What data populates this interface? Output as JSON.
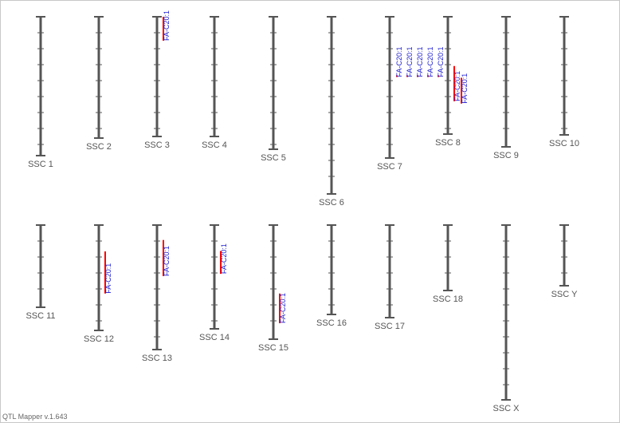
{
  "app": {
    "version_label": "QTL Mapper v.1.643"
  },
  "colors": {
    "chromosome": "#555555",
    "tick": "#555555",
    "qtl_bar": "#ff0000",
    "qtl_text": "#1a1ad0",
    "label": "#555555"
  },
  "chromosomes": [
    {
      "name": "SSC 1",
      "row": 0,
      "col": 0,
      "len": 174,
      "qtls": []
    },
    {
      "name": "SSC 2",
      "row": 0,
      "col": 1,
      "len": 152,
      "qtls": []
    },
    {
      "name": "SSC 3",
      "row": 0,
      "col": 2,
      "len": 150,
      "qtls": [
        {
          "label": "FA-C20:1",
          "start": 0.0,
          "end": 0.2
        }
      ]
    },
    {
      "name": "SSC 4",
      "row": 0,
      "col": 3,
      "len": 150,
      "qtls": []
    },
    {
      "name": "SSC 5",
      "row": 0,
      "col": 4,
      "len": 166,
      "qtls": []
    },
    {
      "name": "SSC 6",
      "row": 0,
      "col": 5,
      "len": 222,
      "qtls": []
    },
    {
      "name": "SSC 7",
      "row": 0,
      "col": 6,
      "len": 177,
      "qtls": [
        {
          "label": "FA-C20:1",
          "start": 0.415,
          "end": 0.425
        },
        {
          "label": "FA-C20:1",
          "start": 0.415,
          "end": 0.425
        },
        {
          "label": "FA-C20:1",
          "start": 0.415,
          "end": 0.425
        },
        {
          "label": "FA-C20:1",
          "start": 0.415,
          "end": 0.425
        },
        {
          "label": "FA-C20:1",
          "start": 0.415,
          "end": 0.425
        }
      ]
    },
    {
      "name": "SSC 8",
      "row": 0,
      "col": 7,
      "len": 147,
      "qtls": [
        {
          "label": "FA-C20:1",
          "start": 0.42,
          "end": 0.72
        },
        {
          "label": "FA-C20:1",
          "start": 0.52,
          "end": 0.74
        }
      ]
    },
    {
      "name": "SSC 9",
      "row": 0,
      "col": 8,
      "len": 163,
      "qtls": []
    },
    {
      "name": "SSC 10",
      "row": 0,
      "col": 9,
      "len": 148,
      "qtls": []
    },
    {
      "name": "SSC 11",
      "row": 1,
      "col": 0,
      "len": 103,
      "qtls": []
    },
    {
      "name": "SSC 12",
      "row": 1,
      "col": 1,
      "len": 132,
      "qtls": [
        {
          "label": "FA-C20:1",
          "start": 0.25,
          "end": 0.65
        }
      ]
    },
    {
      "name": "SSC 13",
      "row": 1,
      "col": 2,
      "len": 156,
      "qtls": [
        {
          "label": "FA-C20:1",
          "start": 0.12,
          "end": 0.41
        }
      ]
    },
    {
      "name": "SSC 14",
      "row": 1,
      "col": 3,
      "len": 130,
      "qtls": [
        {
          "label": "FA-C20:1",
          "start": 0.25,
          "end": 0.47
        }
      ]
    },
    {
      "name": "SSC 15",
      "row": 1,
      "col": 4,
      "len": 143,
      "qtls": [
        {
          "label": "FA-C20:1",
          "start": 0.6,
          "end": 0.86
        }
      ]
    },
    {
      "name": "SSC 16",
      "row": 1,
      "col": 5,
      "len": 112,
      "qtls": []
    },
    {
      "name": "SSC 17",
      "row": 1,
      "col": 6,
      "len": 116,
      "qtls": []
    },
    {
      "name": "SSC 18",
      "row": 1,
      "col": 7,
      "len": 82,
      "qtls": []
    },
    {
      "name": "SSC X",
      "row": 1,
      "col": 8,
      "len": 219,
      "qtls": []
    },
    {
      "name": "SSC Y",
      "row": 1,
      "col": 9,
      "len": 76,
      "qtls": []
    }
  ]
}
